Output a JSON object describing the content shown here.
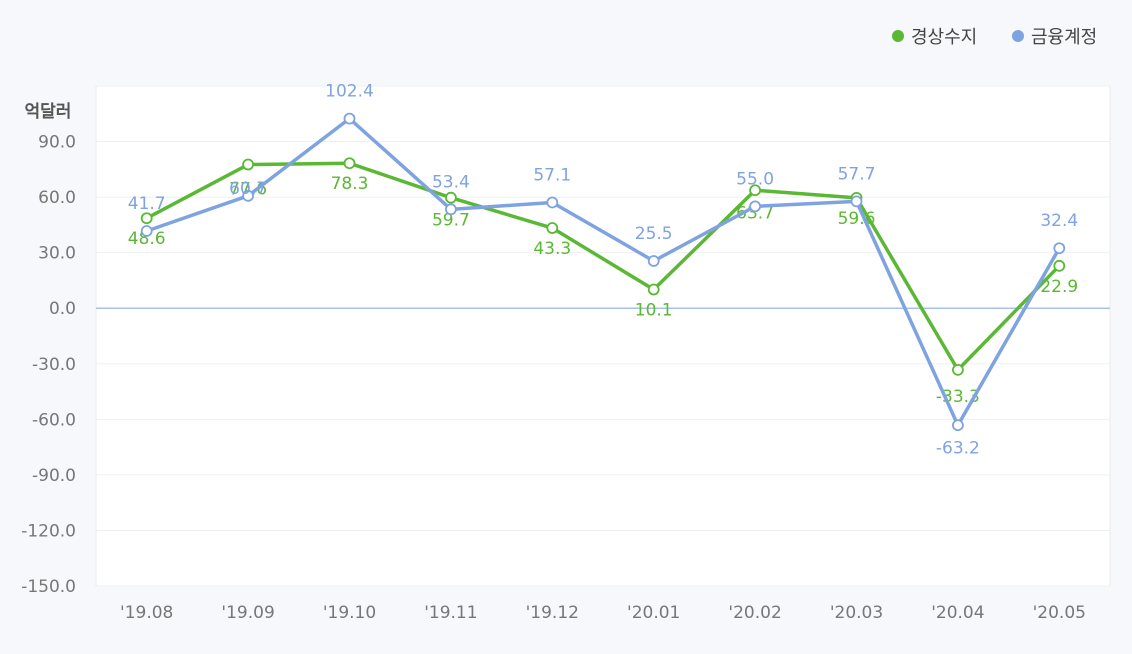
{
  "chart_data": {
    "type": "line",
    "ylabel": "억달러",
    "ylim": [
      -150,
      120
    ],
    "yticks": [
      90.0,
      60.0,
      30.0,
      0.0,
      -30.0,
      -60.0,
      -90.0,
      -120.0,
      -150.0
    ],
    "ytick_labels": [
      "90.0",
      "60.0",
      "30.0",
      "0.0",
      "-30.0",
      "-60.0",
      "-90.0",
      "-120.0",
      "-150.0"
    ],
    "categories": [
      "'19.08",
      "'19.09",
      "'19.10",
      "'19.11",
      "'19.12",
      "'20.01",
      "'20.02",
      "'20.03",
      "'20.04",
      "'20.05"
    ],
    "legend_position": "top-right",
    "grid": true,
    "series": [
      {
        "name": "경상수지",
        "color": "#5bb834",
        "values": [
          48.6,
          77.6,
          78.3,
          59.7,
          43.3,
          10.1,
          63.7,
          59.6,
          -33.3,
          22.9
        ],
        "labels": [
          "48.6",
          "77.6",
          "78.3",
          "59.7",
          "43.3",
          "10.1",
          "63.7",
          "59.6",
          "-33.3",
          "22.9"
        ]
      },
      {
        "name": "금융계정",
        "color": "#7fa3e0",
        "values": [
          41.7,
          60.7,
          102.4,
          53.4,
          57.1,
          25.5,
          55.0,
          57.7,
          -63.2,
          32.4
        ],
        "labels": [
          "41.7",
          "60.7",
          "102.4",
          "53.4",
          "57.1",
          "25.5",
          "55.0",
          "57.7",
          "-63.2",
          "32.4"
        ]
      }
    ]
  }
}
